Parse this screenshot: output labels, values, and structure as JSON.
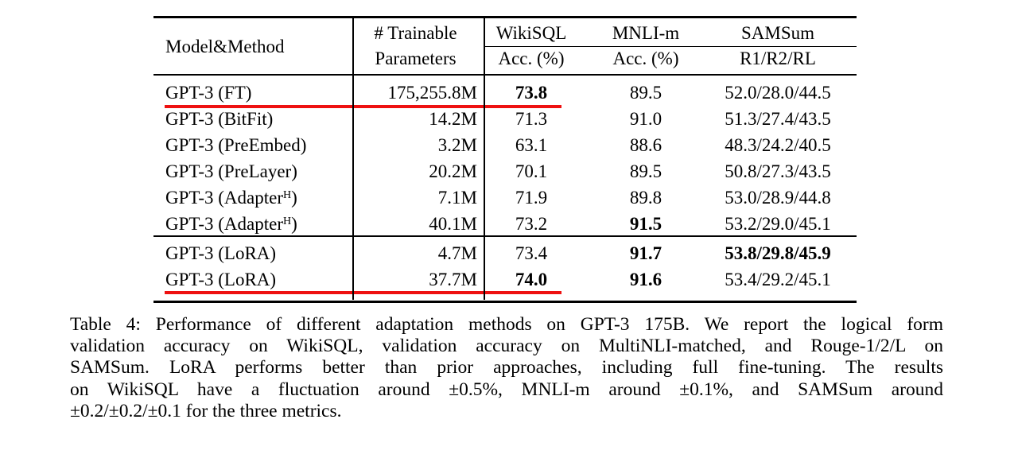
{
  "table": {
    "headers": {
      "col1": "Model&Method",
      "col2_line1": "# Trainable",
      "col2_line2": "Parameters",
      "col3_line1": "WikiSQL",
      "col3_line2": "Acc. (%)",
      "col4_line1": "MNLI-m",
      "col4_line2": "Acc. (%)",
      "col5_line1": "SAMSum",
      "col5_line2": "R1/R2/RL"
    },
    "rows": [
      {
        "model": "GPT-3 (FT)",
        "model_sup": "",
        "model_suffix": "",
        "params": "175,255.8M",
        "wikisql": "73.8",
        "wikisql_bold": true,
        "mnli": "89.5",
        "mnli_bold": false,
        "samsum": "52.0/28.0/44.5",
        "samsum_bold": false,
        "red_underline": true
      },
      {
        "model": "GPT-3 (BitFit)",
        "model_sup": "",
        "model_suffix": "",
        "params": "14.2M",
        "wikisql": "71.3",
        "wikisql_bold": false,
        "mnli": "91.0",
        "mnli_bold": false,
        "samsum": "51.3/27.4/43.5",
        "samsum_bold": false,
        "red_underline": false
      },
      {
        "model": "GPT-3 (PreEmbed)",
        "model_sup": "",
        "model_suffix": "",
        "params": "3.2M",
        "wikisql": "63.1",
        "wikisql_bold": false,
        "mnli": "88.6",
        "mnli_bold": false,
        "samsum": "48.3/24.2/40.5",
        "samsum_bold": false,
        "red_underline": false
      },
      {
        "model": "GPT-3 (PreLayer)",
        "model_sup": "",
        "model_suffix": "",
        "params": "20.2M",
        "wikisql": "70.1",
        "wikisql_bold": false,
        "mnli": "89.5",
        "mnli_bold": false,
        "samsum": "50.8/27.3/43.5",
        "samsum_bold": false,
        "red_underline": false
      },
      {
        "model": "GPT-3 (Adapter",
        "model_sup": "H",
        "model_suffix": ")",
        "params": "7.1M",
        "wikisql": "71.9",
        "wikisql_bold": false,
        "mnli": "89.8",
        "mnli_bold": false,
        "samsum": "53.0/28.9/44.8",
        "samsum_bold": false,
        "red_underline": false
      },
      {
        "model": "GPT-3 (Adapter",
        "model_sup": "H",
        "model_suffix": ")",
        "params": "40.1M",
        "wikisql": "73.2",
        "wikisql_bold": false,
        "mnli": "91.5",
        "mnli_bold": true,
        "samsum": "53.2/29.0/45.1",
        "samsum_bold": false,
        "red_underline": false
      },
      {
        "model": "GPT-3 (LoRA)",
        "model_sup": "",
        "model_suffix": "",
        "params": "4.7M",
        "wikisql": "73.4",
        "wikisql_bold": false,
        "mnli": "91.7",
        "mnli_bold": true,
        "samsum": "53.8/29.8/45.9",
        "samsum_bold": true,
        "red_underline": false
      },
      {
        "model": "GPT-3 (LoRA)",
        "model_sup": "",
        "model_suffix": "",
        "params": "37.7M",
        "wikisql": "74.0",
        "wikisql_bold": true,
        "mnli": "91.6",
        "mnli_bold": true,
        "samsum": "53.4/29.2/45.1",
        "samsum_bold": false,
        "red_underline": true
      }
    ]
  },
  "annotations": {
    "underline_color": "#ee1111"
  },
  "caption": {
    "lines": [
      "Table 4: Performance of different adaptation methods on GPT-3 175B. We report the logical form",
      "validation accuracy on WikiSQL, validation accuracy on MultiNLI-matched, and Rouge-1/2/L on",
      "SAMSum. LoRA performs better than prior approaches, including full fine-tuning. The results",
      "on WikiSQL have a fluctuation around ±0.5%, MNLI-m around ±0.1%, and SAMSum around",
      "±0.2/±0.2/±0.1 for the three metrics."
    ]
  }
}
